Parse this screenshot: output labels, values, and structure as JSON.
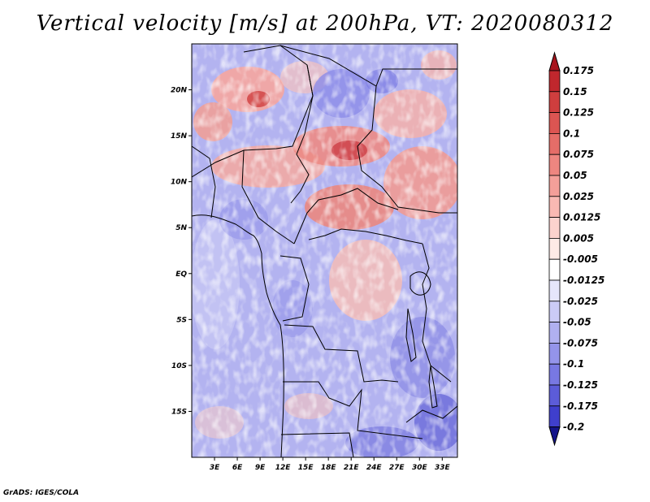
{
  "title": "Vertical velocity [m/s] at 200hPa, VT: 2020080312",
  "credit": "GrADS: IGES/COLA",
  "map": {
    "lon_range": [
      0,
      35
    ],
    "lat_range": [
      -20,
      25
    ],
    "x_ticks": [
      {
        "lon": 3,
        "label": "3E"
      },
      {
        "lon": 6,
        "label": "6E"
      },
      {
        "lon": 9,
        "label": "9E"
      },
      {
        "lon": 12,
        "label": "12E"
      },
      {
        "lon": 15,
        "label": "15E"
      },
      {
        "lon": 18,
        "label": "18E"
      },
      {
        "lon": 21,
        "label": "21E"
      },
      {
        "lon": 24,
        "label": "24E"
      },
      {
        "lon": 27,
        "label": "27E"
      },
      {
        "lon": 30,
        "label": "30E"
      },
      {
        "lon": 33,
        "label": "33E"
      }
    ],
    "y_ticks": [
      {
        "lat": 20,
        "label": "20N"
      },
      {
        "lat": 15,
        "label": "15N"
      },
      {
        "lat": 10,
        "label": "10N"
      },
      {
        "lat": 5,
        "label": "5N"
      },
      {
        "lat": 0,
        "label": "EQ"
      },
      {
        "lat": -5,
        "label": "5S"
      },
      {
        "lat": -10,
        "label": "10S"
      },
      {
        "lat": -15,
        "label": "15S"
      }
    ]
  },
  "colorbar": {
    "levels": [
      {
        "label": "0.175",
        "color": "#c0272d"
      },
      {
        "label": "0.15",
        "color": "#cf3e3e"
      },
      {
        "label": "0.125",
        "color": "#dc5552"
      },
      {
        "label": "0.1",
        "color": "#e56d68"
      },
      {
        "label": "0.075",
        "color": "#ee8680"
      },
      {
        "label": "0.05",
        "color": "#f49f99"
      },
      {
        "label": "0.025",
        "color": "#f9b9b3"
      },
      {
        "label": "0.0125",
        "color": "#fcd3ce"
      },
      {
        "label": "0.005",
        "color": "#feeae6"
      },
      {
        "label": "-0.005",
        "color": "#ffffff"
      },
      {
        "label": "-0.0125",
        "color": "#e6e6fb"
      },
      {
        "label": "-0.025",
        "color": "#cbcbf6"
      },
      {
        "label": "-0.05",
        "color": "#b0b0f0"
      },
      {
        "label": "-0.075",
        "color": "#9494ea"
      },
      {
        "label": "-0.1",
        "color": "#7878e2"
      },
      {
        "label": "-0.125",
        "color": "#5c5cd8"
      },
      {
        "label": "-0.175",
        "color": "#3f3fcc"
      },
      {
        "label": "-0.2",
        "color": "#2626b8"
      }
    ],
    "top_color": "#a8141c",
    "bottom_color": "#14148a"
  }
}
